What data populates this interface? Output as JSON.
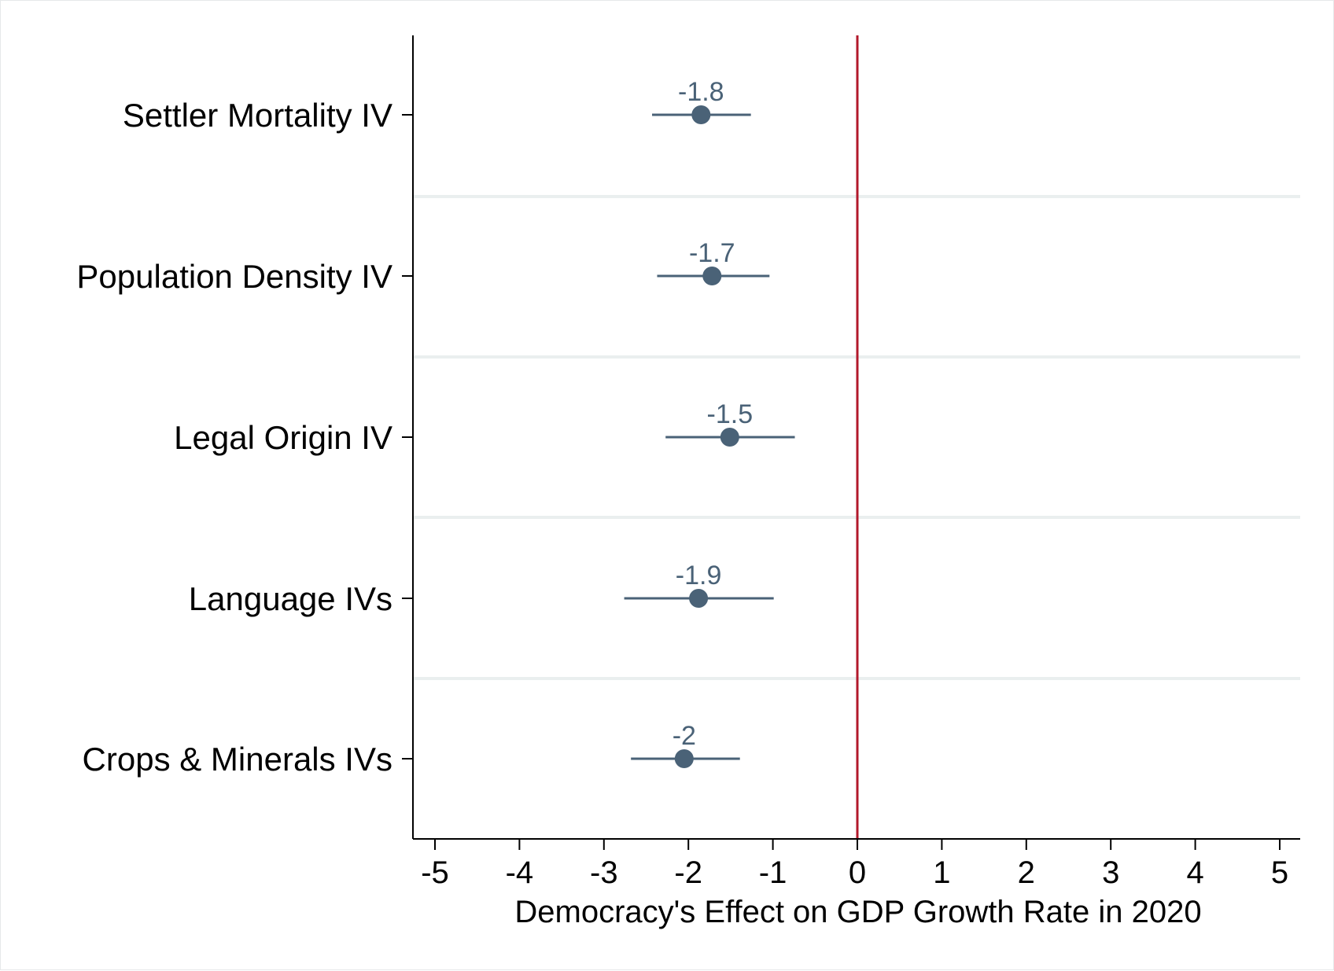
{
  "chart_data": {
    "type": "scatter",
    "subtype": "coefficient-plot",
    "title": "",
    "xlabel": "Democracy's Effect on GDP Growth Rate in 2020",
    "ylabel": "",
    "xlim": [
      -5.25,
      5.25
    ],
    "xticks": [
      -5,
      -4,
      -3,
      -2,
      -1,
      0,
      1,
      2,
      3,
      4,
      5
    ],
    "xtick_labels": [
      "-5",
      "-4",
      "-3",
      "-2",
      "-1",
      "0",
      "1",
      "2",
      "3",
      "4",
      "5"
    ],
    "reference_line": {
      "x": 0,
      "color": "#b2182b"
    },
    "grid": "horizontal separators between categories",
    "legend": "none",
    "categories": [
      "Settler Mortality IV",
      "Population Density IV",
      "Legal Origin IV",
      "Language IVs",
      "Crops & Minerals IVs"
    ],
    "estimates": [
      -1.85,
      -1.72,
      -1.51,
      -1.88,
      -2.05
    ],
    "ci_low": [
      -2.43,
      -2.37,
      -2.27,
      -2.76,
      -2.68
    ],
    "ci_high": [
      -1.26,
      -1.04,
      -0.74,
      -0.99,
      -1.39
    ],
    "data_labels": [
      "-1.8",
      "-1.7",
      "-1.5",
      "-1.9",
      "-2"
    ],
    "colors": {
      "marker": "#4a6277",
      "reference": "#b2182b",
      "separator": "#eaefef",
      "axis": "#000000"
    }
  }
}
